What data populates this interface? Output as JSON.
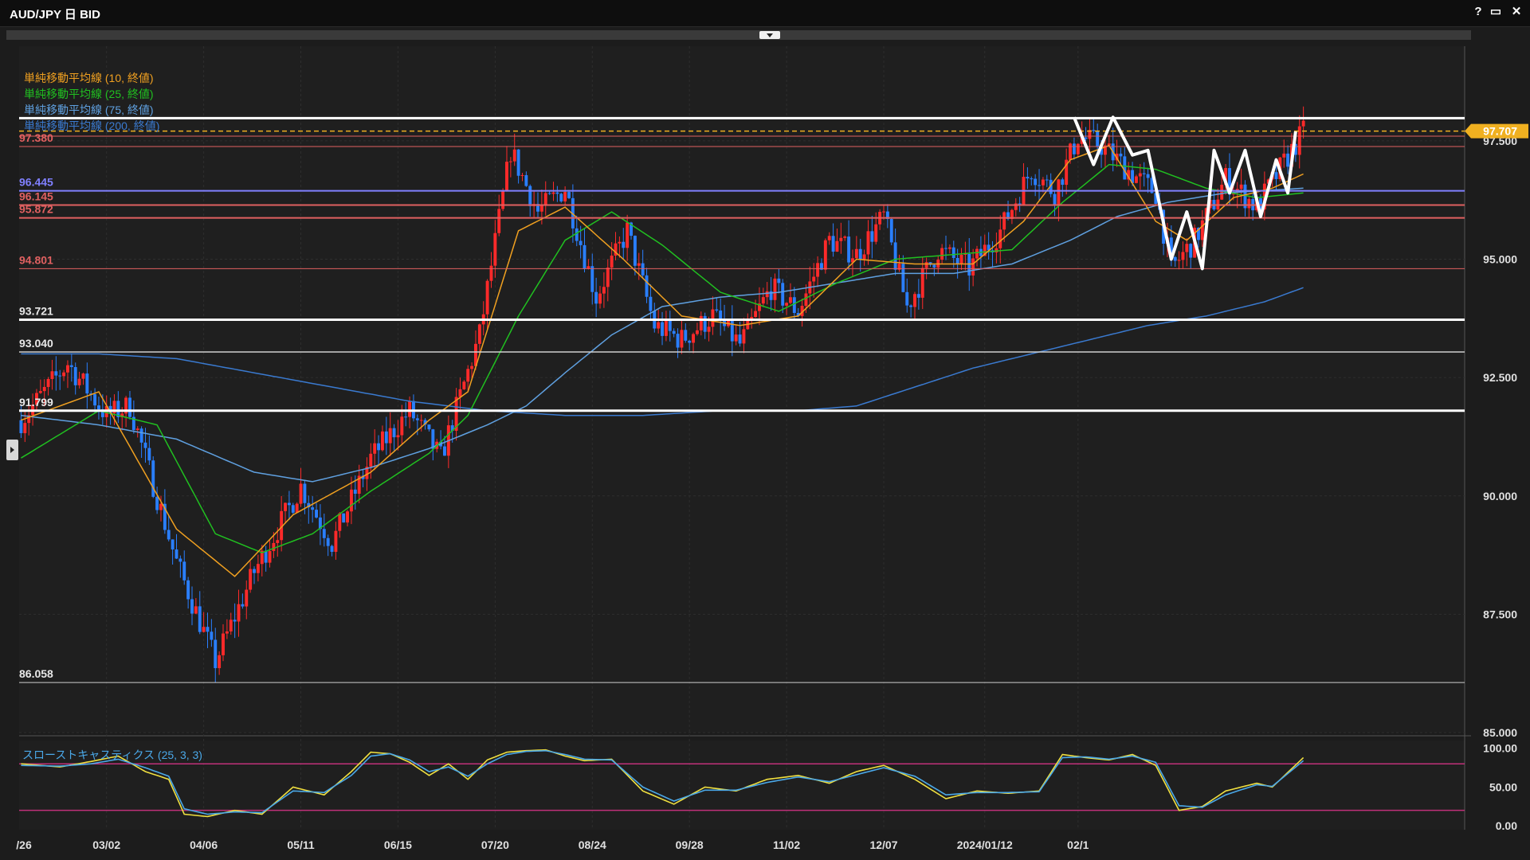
{
  "window": {
    "title": "AUD/JPY 日 BID",
    "help_label": "?",
    "maximize_label": "▭",
    "close_label": "✕"
  },
  "colors": {
    "up_candle": "#ff2a2a",
    "down_candle": "#2a7fff",
    "sma10": "#f0a020",
    "sma25": "#20c020",
    "sma75": "#5fa0e0",
    "sma200": "#3a7ad0",
    "stoch_k": "#f0e040",
    "stoch_d": "#4aa8e8",
    "current_price": "#f0b020"
  },
  "chart_data": [
    {
      "type": "candlestick",
      "title": "AUD/JPY 日 BID",
      "x_tick_labels": [
        "/26",
        "03/02",
        "04/06",
        "05/11",
        "06/15",
        "07/20",
        "08/24",
        "09/28",
        "11/02",
        "12/07",
        "2024/01/12",
        "02/1"
      ],
      "y_tick_labels": [
        "85.000",
        "87.500",
        "90.000",
        "92.500",
        "95.000",
        "97.500"
      ],
      "y_ticks": [
        85.0,
        87.5,
        90.0,
        92.5,
        95.0,
        97.5
      ],
      "ylim": [
        85.0,
        99.5
      ],
      "current_price": {
        "value": 97.707,
        "label": "97.707"
      },
      "legend": [
        "単純移動平均線 (10, 終値)",
        "単純移動平均線 (25, 終値)",
        "単純移動平均線 (75, 終値)",
        "単純移動平均線 (200, 終値)"
      ],
      "horizontal_levels": [
        {
          "value": 97.98,
          "label": "",
          "color": "#ffffff",
          "width": 3
        },
        {
          "value": 97.6,
          "label": "",
          "color": "#e06060",
          "width": 1
        },
        {
          "value": 97.38,
          "label": "97.380",
          "color": "#e06060",
          "width": 1
        },
        {
          "value": 96.445,
          "label": "96.445",
          "color": "#8080ff",
          "width": 2
        },
        {
          "value": 96.145,
          "label": "96.145",
          "color": "#e06060",
          "width": 2
        },
        {
          "value": 95.872,
          "label": "95.872",
          "color": "#e06060",
          "width": 2
        },
        {
          "value": 94.801,
          "label": "94.801",
          "color": "#e06060",
          "width": 1
        },
        {
          "value": 93.721,
          "label": "93.721",
          "color": "#ffffff",
          "width": 3
        },
        {
          "value": 93.04,
          "label": "93.040",
          "color": "#cfcfcf",
          "width": 1.5
        },
        {
          "value": 91.799,
          "label": "91.799",
          "color": "#ffffff",
          "width": 3
        },
        {
          "value": 86.058,
          "label": "86.058",
          "color": "#cfcfcf",
          "width": 1
        }
      ],
      "ohlc_keypoints": [
        {
          "i": 0,
          "close": 91.6
        },
        {
          "i": 12,
          "close": 92.8
        },
        {
          "i": 22,
          "close": 91.7
        },
        {
          "i": 28,
          "close": 91.9
        },
        {
          "i": 40,
          "close": 88.6
        },
        {
          "i": 50,
          "close": 86.5
        },
        {
          "i": 60,
          "close": 88.4
        },
        {
          "i": 72,
          "close": 90.2
        },
        {
          "i": 80,
          "close": 89.0
        },
        {
          "i": 90,
          "close": 90.8
        },
        {
          "i": 100,
          "close": 91.8
        },
        {
          "i": 108,
          "close": 90.8
        },
        {
          "i": 118,
          "close": 93.4
        },
        {
          "i": 126,
          "close": 97.3
        },
        {
          "i": 133,
          "close": 96.0
        },
        {
          "i": 140,
          "close": 96.5
        },
        {
          "i": 148,
          "close": 94.2
        },
        {
          "i": 156,
          "close": 95.6
        },
        {
          "i": 163,
          "close": 93.6
        },
        {
          "i": 170,
          "close": 93.3
        },
        {
          "i": 178,
          "close": 93.8
        },
        {
          "i": 185,
          "close": 93.2
        },
        {
          "i": 193,
          "close": 94.4
        },
        {
          "i": 200,
          "close": 93.9
        },
        {
          "i": 208,
          "close": 95.4
        },
        {
          "i": 215,
          "close": 95.1
        },
        {
          "i": 222,
          "close": 95.9
        },
        {
          "i": 228,
          "close": 94.0
        },
        {
          "i": 236,
          "close": 95.2
        },
        {
          "i": 244,
          "close": 94.8
        },
        {
          "i": 252,
          "close": 95.6
        },
        {
          "i": 260,
          "close": 96.9
        },
        {
          "i": 266,
          "close": 96.4
        },
        {
          "i": 272,
          "close": 97.6
        },
        {
          "i": 278,
          "close": 97.4
        },
        {
          "i": 286,
          "close": 96.8
        },
        {
          "i": 292,
          "close": 96.4
        },
        {
          "i": 296,
          "close": 94.8
        },
        {
          "i": 302,
          "close": 95.4
        },
        {
          "i": 310,
          "close": 96.7
        },
        {
          "i": 318,
          "close": 96.1
        },
        {
          "i": 324,
          "close": 96.9
        },
        {
          "i": 330,
          "close": 97.7
        }
      ],
      "sma_keypoints": {
        "sma10": [
          [
            0,
            91.6
          ],
          [
            20,
            92.2
          ],
          [
            40,
            89.3
          ],
          [
            55,
            88.3
          ],
          [
            70,
            89.6
          ],
          [
            90,
            90.5
          ],
          [
            105,
            91.6
          ],
          [
            115,
            92.2
          ],
          [
            128,
            95.6
          ],
          [
            140,
            96.1
          ],
          [
            155,
            95.0
          ],
          [
            170,
            93.8
          ],
          [
            185,
            93.6
          ],
          [
            200,
            93.8
          ],
          [
            215,
            95.0
          ],
          [
            230,
            94.9
          ],
          [
            245,
            94.9
          ],
          [
            258,
            95.8
          ],
          [
            270,
            97.1
          ],
          [
            280,
            97.4
          ],
          [
            292,
            95.8
          ],
          [
            300,
            95.4
          ],
          [
            312,
            96.3
          ],
          [
            322,
            96.5
          ],
          [
            330,
            96.8
          ]
        ],
        "sma25": [
          [
            0,
            90.8
          ],
          [
            20,
            91.8
          ],
          [
            35,
            91.5
          ],
          [
            50,
            89.2
          ],
          [
            62,
            88.8
          ],
          [
            75,
            89.2
          ],
          [
            90,
            90.1
          ],
          [
            105,
            90.9
          ],
          [
            115,
            91.7
          ],
          [
            128,
            93.8
          ],
          [
            140,
            95.4
          ],
          [
            152,
            96.0
          ],
          [
            165,
            95.3
          ],
          [
            180,
            94.3
          ],
          [
            195,
            93.9
          ],
          [
            210,
            94.5
          ],
          [
            225,
            95.0
          ],
          [
            240,
            95.1
          ],
          [
            255,
            95.2
          ],
          [
            268,
            96.2
          ],
          [
            280,
            97.0
          ],
          [
            292,
            96.9
          ],
          [
            305,
            96.5
          ],
          [
            318,
            96.3
          ],
          [
            330,
            96.4
          ]
        ],
        "sma75": [
          [
            0,
            91.7
          ],
          [
            20,
            91.5
          ],
          [
            40,
            91.2
          ],
          [
            60,
            90.5
          ],
          [
            75,
            90.3
          ],
          [
            90,
            90.6
          ],
          [
            105,
            91.0
          ],
          [
            120,
            91.5
          ],
          [
            130,
            91.9
          ],
          [
            140,
            92.6
          ],
          [
            152,
            93.4
          ],
          [
            165,
            94.0
          ],
          [
            180,
            94.2
          ],
          [
            195,
            94.3
          ],
          [
            210,
            94.5
          ],
          [
            225,
            94.7
          ],
          [
            240,
            94.7
          ],
          [
            255,
            94.9
          ],
          [
            270,
            95.4
          ],
          [
            282,
            95.9
          ],
          [
            295,
            96.2
          ],
          [
            310,
            96.4
          ],
          [
            330,
            96.5
          ]
        ],
        "sma200": [
          [
            0,
            93.0
          ],
          [
            20,
            93.0
          ],
          [
            40,
            92.9
          ],
          [
            60,
            92.6
          ],
          [
            80,
            92.3
          ],
          [
            100,
            92.0
          ],
          [
            120,
            91.8
          ],
          [
            140,
            91.7
          ],
          [
            160,
            91.7
          ],
          [
            180,
            91.8
          ],
          [
            200,
            91.8
          ],
          [
            215,
            91.9
          ],
          [
            230,
            92.3
          ],
          [
            245,
            92.7
          ],
          [
            260,
            93.0
          ],
          [
            275,
            93.3
          ],
          [
            290,
            93.6
          ],
          [
            305,
            93.8
          ],
          [
            320,
            94.1
          ],
          [
            330,
            94.4
          ]
        ]
      },
      "annotation_zigzag": [
        {
          "i": 271,
          "v": 98.0
        },
        {
          "i": 276,
          "v": 97.0
        },
        {
          "i": 281,
          "v": 98.0
        },
        {
          "i": 286,
          "v": 97.2
        },
        {
          "i": 290,
          "v": 97.3
        },
        {
          "i": 296,
          "v": 95.0
        },
        {
          "i": 300,
          "v": 96.0
        },
        {
          "i": 304,
          "v": 94.8
        },
        {
          "i": 307,
          "v": 97.3
        },
        {
          "i": 311,
          "v": 96.4
        },
        {
          "i": 315,
          "v": 97.3
        },
        {
          "i": 319,
          "v": 95.9
        },
        {
          "i": 323,
          "v": 97.1
        },
        {
          "i": 326,
          "v": 96.4
        },
        {
          "i": 328,
          "v": 97.7
        }
      ]
    },
    {
      "type": "line",
      "title": "スローストキャスティクス (25, 3, 3)",
      "y_tick_labels": [
        "100.00",
        "50.00",
        "0.00"
      ],
      "y_ticks": [
        100,
        50,
        0
      ],
      "ylim": [
        -5,
        110
      ],
      "levels": [
        80,
        20
      ],
      "series": [
        {
          "key": "k",
          "values_keypoints": [
            [
              0,
              80
            ],
            [
              10,
              76
            ],
            [
              18,
              83
            ],
            [
              25,
              90
            ],
            [
              32,
              70
            ],
            [
              38,
              60
            ],
            [
              42,
              15
            ],
            [
              48,
              12
            ],
            [
              55,
              20
            ],
            [
              62,
              15
            ],
            [
              70,
              50
            ],
            [
              78,
              40
            ],
            [
              85,
              70
            ],
            [
              90,
              95
            ],
            [
              95,
              93
            ],
            [
              100,
              82
            ],
            [
              105,
              65
            ],
            [
              110,
              80
            ],
            [
              115,
              60
            ],
            [
              120,
              85
            ],
            [
              125,
              95
            ],
            [
              130,
              97
            ],
            [
              135,
              98
            ],
            [
              140,
              90
            ],
            [
              145,
              84
            ],
            [
              152,
              86
            ],
            [
              160,
              45
            ],
            [
              168,
              28
            ],
            [
              176,
              50
            ],
            [
              184,
              45
            ],
            [
              192,
              60
            ],
            [
              200,
              65
            ],
            [
              208,
              55
            ],
            [
              215,
              70
            ],
            [
              222,
              78
            ],
            [
              230,
              60
            ],
            [
              238,
              35
            ],
            [
              246,
              45
            ],
            [
              254,
              42
            ],
            [
              262,
              45
            ],
            [
              268,
              92
            ],
            [
              274,
              88
            ],
            [
              280,
              85
            ],
            [
              286,
              92
            ],
            [
              292,
              78
            ],
            [
              298,
              20
            ],
            [
              304,
              25
            ],
            [
              310,
              45
            ],
            [
              318,
              55
            ],
            [
              322,
              50
            ],
            [
              330,
              88
            ]
          ]
        },
        {
          "key": "d",
          "values_keypoints": [
            [
              0,
              78
            ],
            [
              10,
              77
            ],
            [
              18,
              80
            ],
            [
              25,
              86
            ],
            [
              32,
              75
            ],
            [
              38,
              64
            ],
            [
              42,
              22
            ],
            [
              48,
              15
            ],
            [
              55,
              18
            ],
            [
              62,
              17
            ],
            [
              70,
              45
            ],
            [
              78,
              43
            ],
            [
              85,
              65
            ],
            [
              90,
              90
            ],
            [
              95,
              93
            ],
            [
              100,
              85
            ],
            [
              105,
              70
            ],
            [
              110,
              76
            ],
            [
              115,
              64
            ],
            [
              120,
              80
            ],
            [
              125,
              92
            ],
            [
              130,
              96
            ],
            [
              135,
              97
            ],
            [
              140,
              92
            ],
            [
              145,
              86
            ],
            [
              152,
              85
            ],
            [
              160,
              50
            ],
            [
              168,
              32
            ],
            [
              176,
              46
            ],
            [
              184,
              46
            ],
            [
              192,
              56
            ],
            [
              200,
              63
            ],
            [
              208,
              57
            ],
            [
              215,
              66
            ],
            [
              222,
              75
            ],
            [
              230,
              64
            ],
            [
              238,
              40
            ],
            [
              246,
              43
            ],
            [
              254,
              43
            ],
            [
              262,
              44
            ],
            [
              268,
              88
            ],
            [
              274,
              89
            ],
            [
              280,
              86
            ],
            [
              286,
              90
            ],
            [
              292,
              82
            ],
            [
              298,
              26
            ],
            [
              304,
              24
            ],
            [
              310,
              40
            ],
            [
              318,
              53
            ],
            [
              322,
              51
            ],
            [
              330,
              84
            ]
          ]
        }
      ]
    }
  ]
}
